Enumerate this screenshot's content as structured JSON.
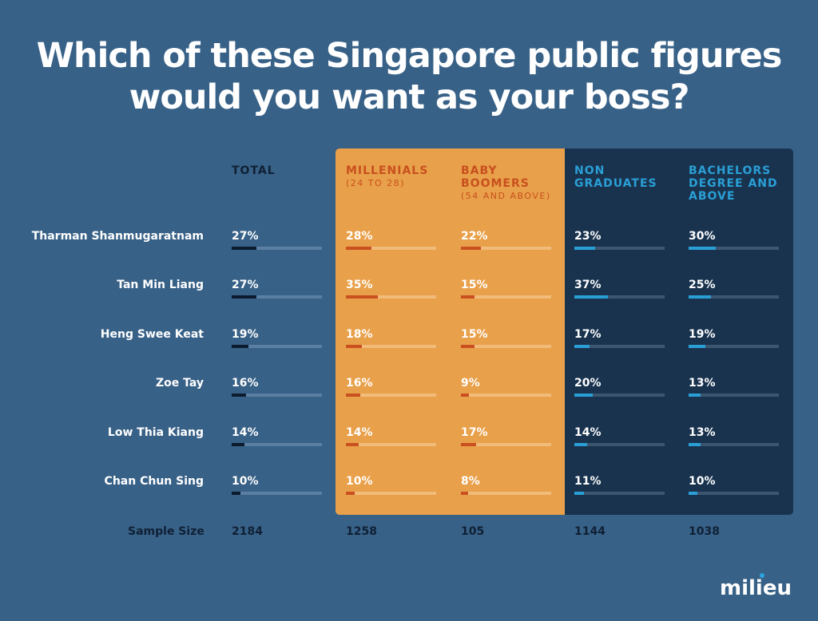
{
  "chart_data": {
    "type": "table",
    "title": "Which of these Singapore public figures would you want as your boss?",
    "columns": [
      {
        "name": "TOTAL",
        "sub": "",
        "color": "#0f2035",
        "bar": "#0d1b2e",
        "track": "#5a7fa2"
      },
      {
        "name": "MILLENIALS",
        "sub": "(24 TO 28)",
        "color": "#c8501e",
        "bar": "#c9501f",
        "track": "#f1bb7a"
      },
      {
        "name": "BABY BOOMERS",
        "sub": "(54 AND ABOVE)",
        "color": "#c8501e",
        "bar": "#c9501f",
        "track": "#f1bb7a"
      },
      {
        "name": "NON GRADUATES",
        "sub": "",
        "color": "#2a9fd6",
        "bar": "#2a9fd6",
        "track": "#3d5670"
      },
      {
        "name": "BACHELORS DEGREE AND ABOVE",
        "sub": "",
        "color": "#2a9fd6",
        "bar": "#2a9fd6",
        "track": "#3d5670"
      }
    ],
    "rows": [
      {
        "name": "Tharman Shanmugaratnam",
        "values": [
          27,
          28,
          22,
          23,
          30
        ]
      },
      {
        "name": "Tan Min Liang",
        "values": [
          27,
          35,
          15,
          37,
          25
        ]
      },
      {
        "name": "Heng Swee Keat",
        "values": [
          19,
          18,
          15,
          17,
          19
        ]
      },
      {
        "name": "Zoe Tay",
        "values": [
          16,
          16,
          9,
          20,
          13
        ]
      },
      {
        "name": "Low Thia Kiang",
        "values": [
          14,
          14,
          17,
          14,
          13
        ]
      },
      {
        "name": "Chan Chun Sing",
        "values": [
          10,
          10,
          8,
          11,
          10
        ]
      }
    ],
    "sample_size_label": "Sample Size",
    "sample_sizes": [
      2184,
      1258,
      105,
      1144,
      1038
    ],
    "unit": "%"
  },
  "logo": "milieu"
}
